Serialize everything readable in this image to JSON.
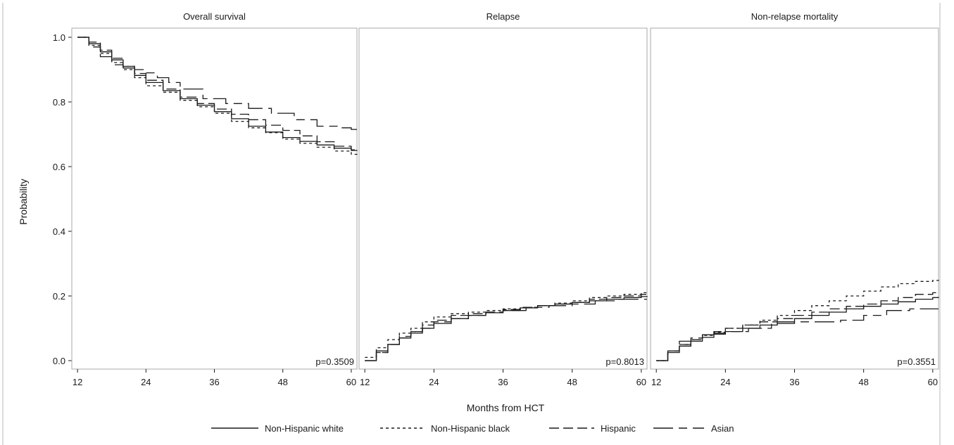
{
  "figure": {
    "ylabel": "Probability",
    "xlabel": "Months from HCT",
    "y_ticks": [
      "0.0",
      "0.2",
      "0.4",
      "0.6",
      "0.8",
      "1.0"
    ],
    "x_ticks": [
      "12",
      "24",
      "36",
      "48",
      "60"
    ],
    "legend": [
      {
        "label": "Non-Hispanic white",
        "dash": "solid"
      },
      {
        "label": "Non-Hispanic black",
        "dash": "short-dash"
      },
      {
        "label": "Hispanic",
        "dash": "long-dash"
      },
      {
        "label": "Asian",
        "dash": "dash-long"
      }
    ]
  },
  "chart_data": [
    {
      "type": "line",
      "title": "Overall survival",
      "xlabel": "Months from HCT",
      "ylabel": "Probability",
      "xlim": [
        11,
        61
      ],
      "ylim": [
        -0.02,
        1.03
      ],
      "grid": false,
      "step": true,
      "annotation": "p=0.3509",
      "series": [
        {
          "name": "Non-Hispanic white",
          "x": [
            12,
            14,
            16,
            18,
            20,
            22,
            24,
            27,
            30,
            33,
            36,
            39,
            42,
            45,
            48,
            51,
            54,
            57,
            60,
            61
          ],
          "y": [
            1.0,
            0.98,
            0.955,
            0.93,
            0.905,
            0.882,
            0.86,
            0.835,
            0.81,
            0.79,
            0.77,
            0.748,
            0.725,
            0.707,
            0.69,
            0.678,
            0.667,
            0.657,
            0.65,
            0.648
          ]
        },
        {
          "name": "Non-Hispanic black",
          "x": [
            12,
            14,
            16,
            18,
            20,
            22,
            24,
            27,
            30,
            33,
            36,
            39,
            42,
            45,
            48,
            51,
            54,
            57,
            60,
            61
          ],
          "y": [
            1.0,
            0.975,
            0.95,
            0.922,
            0.9,
            0.875,
            0.85,
            0.83,
            0.805,
            0.785,
            0.765,
            0.74,
            0.72,
            0.705,
            0.685,
            0.672,
            0.66,
            0.648,
            0.638,
            0.635
          ]
        },
        {
          "name": "Hispanic",
          "x": [
            12,
            14,
            16,
            18,
            20,
            22,
            24,
            27,
            30,
            33,
            36,
            39,
            42,
            45,
            48,
            51,
            54,
            57,
            60,
            61
          ],
          "y": [
            1.0,
            0.985,
            0.96,
            0.935,
            0.91,
            0.888,
            0.867,
            0.84,
            0.815,
            0.795,
            0.778,
            0.762,
            0.745,
            0.728,
            0.712,
            0.695,
            0.677,
            0.663,
            0.652,
            0.65
          ]
        },
        {
          "name": "Asian",
          "x": [
            12,
            14,
            16,
            18,
            20,
            22,
            24,
            26,
            28,
            30,
            34,
            38,
            42,
            46,
            50,
            54,
            58,
            60,
            61
          ],
          "y": [
            1.0,
            0.97,
            0.94,
            0.915,
            0.91,
            0.9,
            0.89,
            0.875,
            0.86,
            0.84,
            0.81,
            0.795,
            0.78,
            0.765,
            0.745,
            0.725,
            0.72,
            0.715,
            0.715
          ]
        }
      ]
    },
    {
      "type": "line",
      "title": "Relapse",
      "xlabel": "Months from HCT",
      "ylabel": "Probability",
      "xlim": [
        11,
        61
      ],
      "ylim": [
        -0.02,
        1.03
      ],
      "grid": false,
      "step": true,
      "annotation": "p=0.8013",
      "series": [
        {
          "name": "Non-Hispanic white",
          "x": [
            12,
            14,
            16,
            18,
            20,
            22,
            24,
            27,
            30,
            33,
            36,
            39,
            42,
            45,
            48,
            51,
            54,
            57,
            60,
            61
          ],
          "y": [
            0.0,
            0.03,
            0.05,
            0.07,
            0.085,
            0.1,
            0.115,
            0.13,
            0.14,
            0.148,
            0.155,
            0.163,
            0.17,
            0.175,
            0.18,
            0.185,
            0.19,
            0.195,
            0.198,
            0.2
          ]
        },
        {
          "name": "Non-Hispanic black",
          "x": [
            12,
            14,
            16,
            18,
            20,
            22,
            24,
            27,
            30,
            33,
            36,
            39,
            42,
            45,
            48,
            51,
            54,
            57,
            60,
            61
          ],
          "y": [
            0.01,
            0.04,
            0.065,
            0.085,
            0.1,
            0.12,
            0.135,
            0.145,
            0.15,
            0.155,
            0.16,
            0.165,
            0.17,
            0.178,
            0.185,
            0.195,
            0.2,
            0.205,
            0.21,
            0.215
          ]
        },
        {
          "name": "Hispanic",
          "x": [
            12,
            14,
            16,
            18,
            20,
            22,
            24,
            27,
            30,
            33,
            36,
            39,
            42,
            45,
            48,
            51,
            54,
            57,
            60,
            61
          ],
          "y": [
            0.0,
            0.025,
            0.05,
            0.07,
            0.09,
            0.11,
            0.125,
            0.14,
            0.145,
            0.15,
            0.158,
            0.165,
            0.17,
            0.175,
            0.18,
            0.19,
            0.195,
            0.2,
            0.205,
            0.21
          ]
        },
        {
          "name": "Asian",
          "x": [
            12,
            13,
            14,
            16,
            18,
            20,
            22,
            24,
            27,
            30,
            33,
            36,
            40,
            44,
            48,
            52,
            56,
            61
          ],
          "y": [
            0.0,
            0.0,
            0.025,
            0.05,
            0.075,
            0.09,
            0.1,
            0.12,
            0.13,
            0.14,
            0.15,
            0.155,
            0.165,
            0.17,
            0.175,
            0.185,
            0.19,
            0.19
          ]
        }
      ]
    },
    {
      "type": "line",
      "title": "Non-relapse mortality",
      "xlabel": "Months from HCT",
      "ylabel": "Probability",
      "xlim": [
        11,
        61
      ],
      "ylim": [
        -0.02,
        1.03
      ],
      "grid": false,
      "step": true,
      "annotation": "p=0.3551",
      "series": [
        {
          "name": "Non-Hispanic white",
          "x": [
            12,
            14,
            16,
            18,
            20,
            22,
            24,
            27,
            30,
            33,
            36,
            39,
            42,
            45,
            48,
            51,
            54,
            57,
            60,
            61
          ],
          "y": [
            0.0,
            0.025,
            0.045,
            0.06,
            0.072,
            0.082,
            0.09,
            0.1,
            0.11,
            0.12,
            0.13,
            0.14,
            0.15,
            0.16,
            0.168,
            0.175,
            0.182,
            0.19,
            0.195,
            0.197
          ]
        },
        {
          "name": "Non-Hispanic black",
          "x": [
            12,
            14,
            16,
            18,
            20,
            22,
            24,
            27,
            30,
            33,
            36,
            39,
            42,
            45,
            48,
            51,
            54,
            57,
            60,
            61
          ],
          "y": [
            0.0,
            0.03,
            0.05,
            0.065,
            0.078,
            0.088,
            0.1,
            0.11,
            0.125,
            0.14,
            0.155,
            0.17,
            0.185,
            0.2,
            0.215,
            0.228,
            0.238,
            0.245,
            0.248,
            0.25
          ]
        },
        {
          "name": "Hispanic",
          "x": [
            12,
            14,
            16,
            18,
            20,
            22,
            24,
            27,
            30,
            33,
            36,
            39,
            42,
            45,
            48,
            51,
            54,
            57,
            60,
            61
          ],
          "y": [
            0.0,
            0.03,
            0.05,
            0.065,
            0.08,
            0.09,
            0.1,
            0.11,
            0.12,
            0.13,
            0.14,
            0.15,
            0.16,
            0.168,
            0.175,
            0.185,
            0.195,
            0.205,
            0.21,
            0.212
          ]
        },
        {
          "name": "Asian",
          "x": [
            12,
            14,
            16,
            18,
            20,
            22,
            24,
            28,
            32,
            36,
            40,
            44,
            48,
            52,
            56,
            61
          ],
          "y": [
            0.0,
            0.03,
            0.06,
            0.07,
            0.08,
            0.085,
            0.09,
            0.1,
            0.115,
            0.12,
            0.12,
            0.125,
            0.14,
            0.155,
            0.16,
            0.16
          ]
        }
      ]
    }
  ]
}
